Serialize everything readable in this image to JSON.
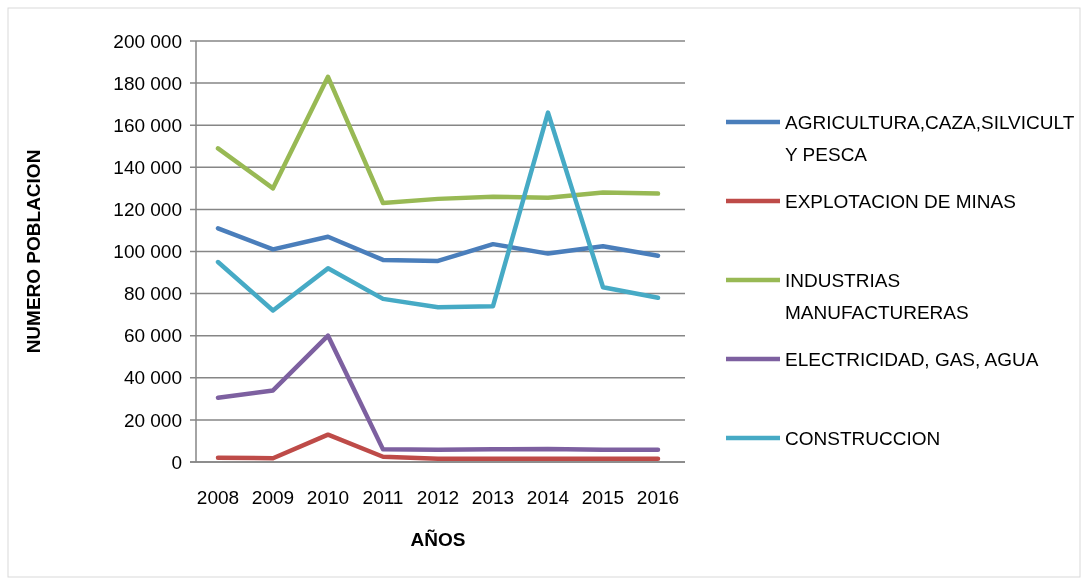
{
  "chart_data": {
    "type": "line",
    "xlabel": "AÑOS",
    "ylabel": "NUMERO POBLACION",
    "categories": [
      "2008",
      "2009",
      "2010",
      "2011",
      "2012",
      "2013",
      "2014",
      "2015",
      "2016"
    ],
    "series": [
      {
        "name": "AGRICULTURA,CAZA,SILVICULT Y PESCA",
        "color": "#4a7ebb",
        "values": [
          111000,
          101000,
          107000,
          96000,
          95500,
          103500,
          99000,
          102500,
          98000
        ]
      },
      {
        "name": "EXPLOTACION DE MINAS",
        "color": "#be4b48",
        "values": [
          2000,
          1800,
          13000,
          2500,
          1500,
          1500,
          1500,
          1500,
          1500
        ]
      },
      {
        "name": "INDUSTRIAS MANUFACTURERAS",
        "color": "#98b954",
        "values": [
          149000,
          130000,
          183000,
          123000,
          125000,
          126000,
          125500,
          128000,
          127500
        ]
      },
      {
        "name": "ELECTRICIDAD, GAS, AGUA",
        "color": "#7d60a0",
        "values": [
          30500,
          34000,
          60000,
          6000,
          5800,
          6000,
          6200,
          5800,
          5800
        ]
      },
      {
        "name": "CONSTRUCCION",
        "color": "#46aac5",
        "values": [
          95000,
          72000,
          92000,
          77500,
          73500,
          74000,
          166000,
          83000,
          78000
        ]
      }
    ],
    "ylim": [
      0,
      200000
    ],
    "yticks": [
      {
        "value": 0,
        "label": "0"
      },
      {
        "value": 20000,
        "label": "20 000"
      },
      {
        "value": 40000,
        "label": "40 000"
      },
      {
        "value": 60000,
        "label": "60 000"
      },
      {
        "value": 80000,
        "label": "80 000"
      },
      {
        "value": 100000,
        "label": "100 000"
      },
      {
        "value": 120000,
        "label": "120 000"
      },
      {
        "value": 140000,
        "label": "140 000"
      },
      {
        "value": 160000,
        "label": "160 000"
      },
      {
        "value": 180000,
        "label": "180 000"
      },
      {
        "value": 200000,
        "label": "200 000"
      }
    ],
    "grid": "y",
    "legend": "right",
    "marker": "none",
    "line_style": "solid"
  }
}
